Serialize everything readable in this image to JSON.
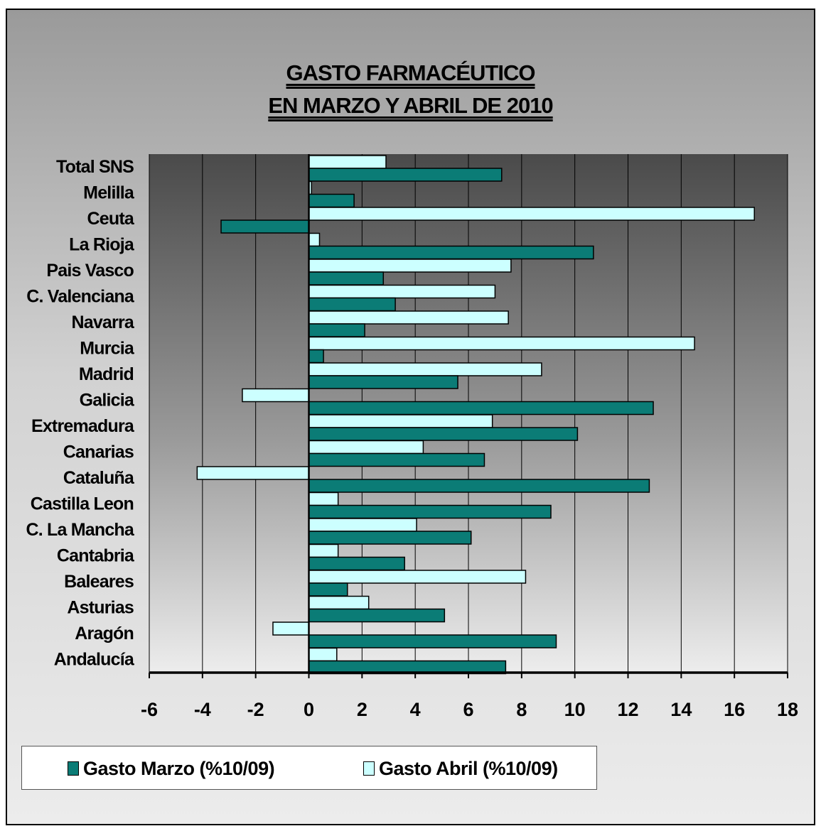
{
  "title": {
    "line1": "GASTO FARMACÉUTICO",
    "line2": "EN MARZO Y ABRIL DE 2010"
  },
  "colors": {
    "marzo": "#0b7c76",
    "abril": "#ccffff"
  },
  "legend": {
    "marzo_label": "Gasto Marzo  (%10/09)",
    "abril_label": "Gasto Abril  (%10/09)",
    "position": "bottom"
  },
  "chart_data": {
    "type": "bar",
    "orientation": "horizontal",
    "title": "GASTO FARMACÉUTICO EN MARZO Y ABRIL DE 2010",
    "categories": [
      "Total SNS",
      "Melilla",
      "Ceuta",
      "La Rioja",
      "Pais Vasco",
      "C. Valenciana",
      "Navarra",
      "Murcia",
      "Madrid",
      "Galicia",
      "Extremadura",
      "Canarias",
      "Cataluña",
      "Castilla Leon",
      "C. La Mancha",
      "Cantabria",
      "Baleares",
      "Asturias",
      "Aragón",
      "Andalucía"
    ],
    "series": [
      {
        "name": "Gasto Marzo  (%10/09)",
        "values": [
          7.25,
          1.7,
          -3.3,
          10.7,
          2.8,
          3.25,
          2.1,
          0.55,
          5.6,
          12.95,
          10.1,
          6.6,
          12.8,
          9.1,
          6.1,
          3.6,
          1.45,
          5.1,
          9.3,
          7.4
        ]
      },
      {
        "name": "Gasto Abril  (%10/09)",
        "values": [
          2.9,
          0.1,
          16.75,
          0.4,
          7.6,
          7.0,
          7.5,
          14.5,
          8.75,
          -2.5,
          6.9,
          4.3,
          -4.2,
          1.1,
          4.05,
          1.1,
          8.15,
          2.25,
          -1.35,
          1.05
        ]
      }
    ],
    "xticks": [
      "-6",
      "-4",
      "-2",
      "0",
      "2",
      "4",
      "6",
      "8",
      "10",
      "12",
      "14",
      "16",
      "18"
    ],
    "xlim": [
      -6,
      18
    ],
    "grid": "vertical"
  }
}
